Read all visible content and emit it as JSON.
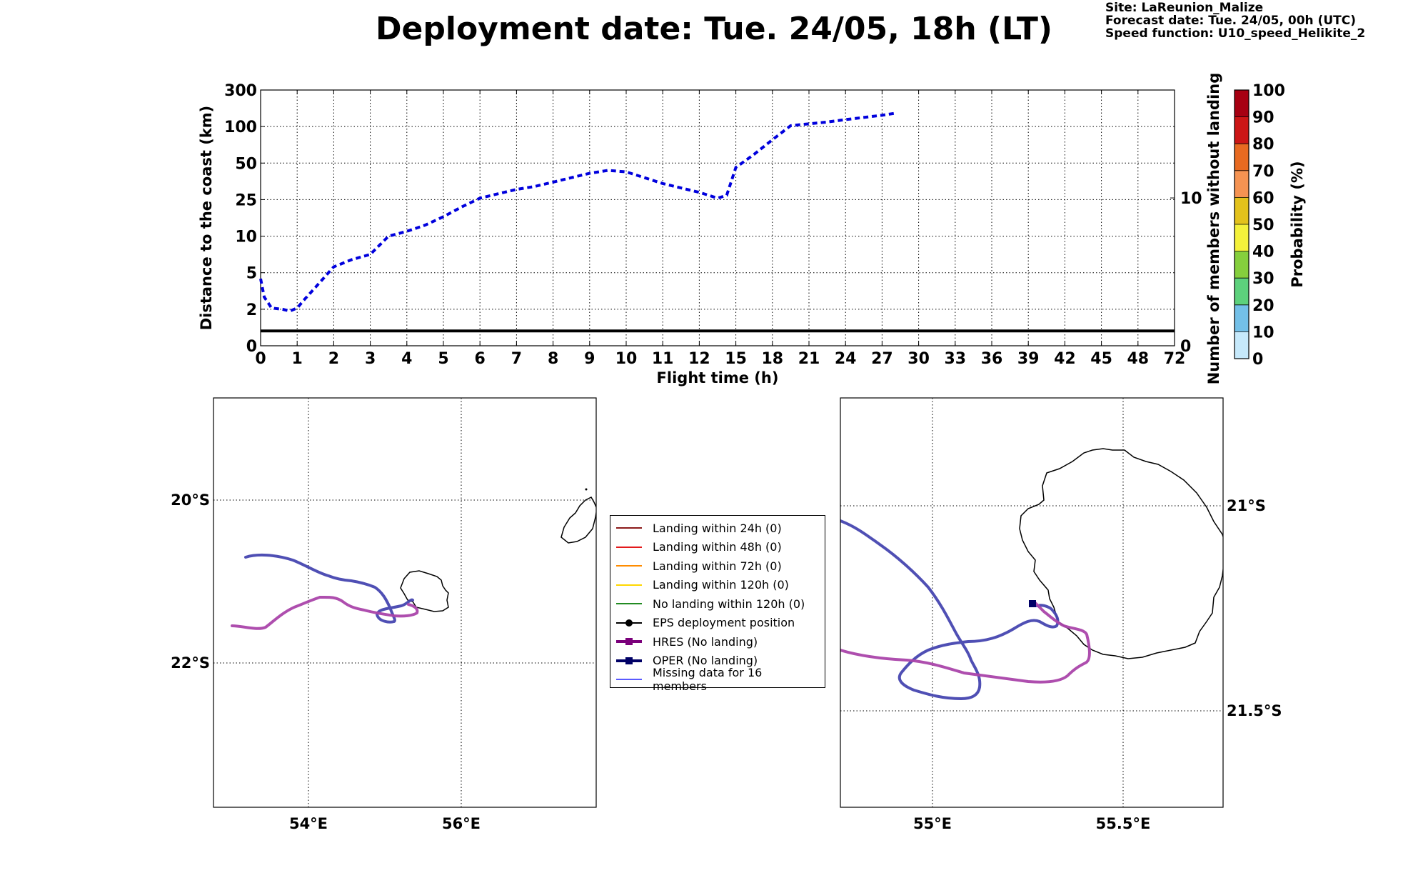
{
  "header": {
    "title": "Deployment date: Tue. 24/05, 18h (LT)",
    "site": "Site: LaReunion_Malize",
    "forecast": "Forecast date: Tue. 24/05, 00h (UTC)",
    "speed": "Speed function: U10_speed_Helikite_2"
  },
  "chart_data": [
    {
      "type": "line",
      "xlabel": "Flight time (h)",
      "ylabel": "Distance to the coast (km)",
      "y2label": "Number of members without landing",
      "x_tick_labels": [
        "0",
        "1",
        "2",
        "3",
        "4",
        "5",
        "6",
        "7",
        "8",
        "9",
        "10",
        "11",
        "12",
        "15",
        "18",
        "21",
        "24",
        "27",
        "30",
        "33",
        "36",
        "39",
        "42",
        "45",
        "48",
        "72"
      ],
      "y_tick_labels": [
        "0",
        "2",
        "5",
        "10",
        "25",
        "50",
        "100",
        "300"
      ],
      "y2_tick_labels": [
        "0",
        "10"
      ],
      "grid": true,
      "series": [
        {
          "style": "dashed",
          "color": "#0000dd",
          "x": [
            0,
            0.1,
            0.3,
            0.6,
            0.8,
            1.0,
            1.2,
            1.5,
            2.0,
            2.5,
            3.0,
            3.5,
            4.0,
            4.5,
            5.0,
            5.5,
            6.0,
            6.5,
            7.0,
            7.5,
            8.0,
            8.5,
            9.0,
            9.5,
            10.0,
            10.5,
            11.0,
            11.5,
            12,
            13.5,
            14.25,
            15,
            16.5,
            18,
            19.5,
            21,
            22.5,
            24,
            25.5,
            27,
            28
          ],
          "y": [
            4.5,
            3,
            2.1,
            2,
            1.9,
            2.1,
            2.8,
            3.8,
            5.8,
            6.8,
            7.5,
            10,
            12,
            14.5,
            18,
            22,
            26,
            29,
            32,
            34,
            37,
            40,
            43,
            45,
            44,
            40,
            36,
            33,
            30,
            26,
            28,
            47,
            62,
            82,
            105,
            115,
            125,
            138,
            150,
            162,
            172
          ]
        },
        {
          "style": "solid",
          "color": "#000000",
          "name_axis": "right",
          "x": [
            0,
            72
          ],
          "y": [
            1,
            1
          ]
        }
      ],
      "colorbar": {
        "label": "Probability (%)",
        "tick_labels": [
          "0",
          "10",
          "20",
          "30",
          "40",
          "50",
          "60",
          "70",
          "80",
          "90",
          "100"
        ],
        "colors": [
          "#c6e9fb",
          "#73c0e8",
          "#5dd17c",
          "#85cf3d",
          "#f4f13b",
          "#e3c21c",
          "#f59352",
          "#e86a21",
          "#cc1616",
          "#a70012"
        ],
        "colors_top": "#6d0017"
      }
    },
    {
      "type": "map",
      "x_tick_labels": [
        "54°E",
        "56°E"
      ],
      "y_tick_labels": [
        "20°S",
        "22°S"
      ]
    },
    {
      "type": "map",
      "x_tick_labels": [
        "55°E",
        "55.5°E"
      ],
      "y_tick_labels": [
        "21°S",
        "21.5°S"
      ]
    }
  ],
  "legend": {
    "items": [
      {
        "label": "Landing within 24h (0)",
        "color": "#8b1a1a",
        "marker": "none"
      },
      {
        "label": "Landing within 48h (0)",
        "color": "#e31a1c",
        "marker": "none"
      },
      {
        "label": "Landing within 72h (0)",
        "color": "#ff8c00",
        "marker": "none"
      },
      {
        "label": "Landing within 120h (0)",
        "color": "#ffd700",
        "marker": "none"
      },
      {
        "label": "No landing within 120h (0)",
        "color": "#228b22",
        "marker": "none"
      },
      {
        "label": "EPS deployment position",
        "color": "#000000",
        "marker": "dot"
      },
      {
        "label": "HRES (No landing)",
        "color": "#7b007b",
        "marker": "square"
      },
      {
        "label": "OPER (No landing)",
        "color": "#000066",
        "marker": "square"
      },
      {
        "label": "Missing data for 16 members",
        "color": "#5a5aff",
        "marker": "none"
      }
    ]
  },
  "colors": {
    "hres": "#aa44aa",
    "oper": "#4646b0",
    "distance": "#0000dd"
  }
}
